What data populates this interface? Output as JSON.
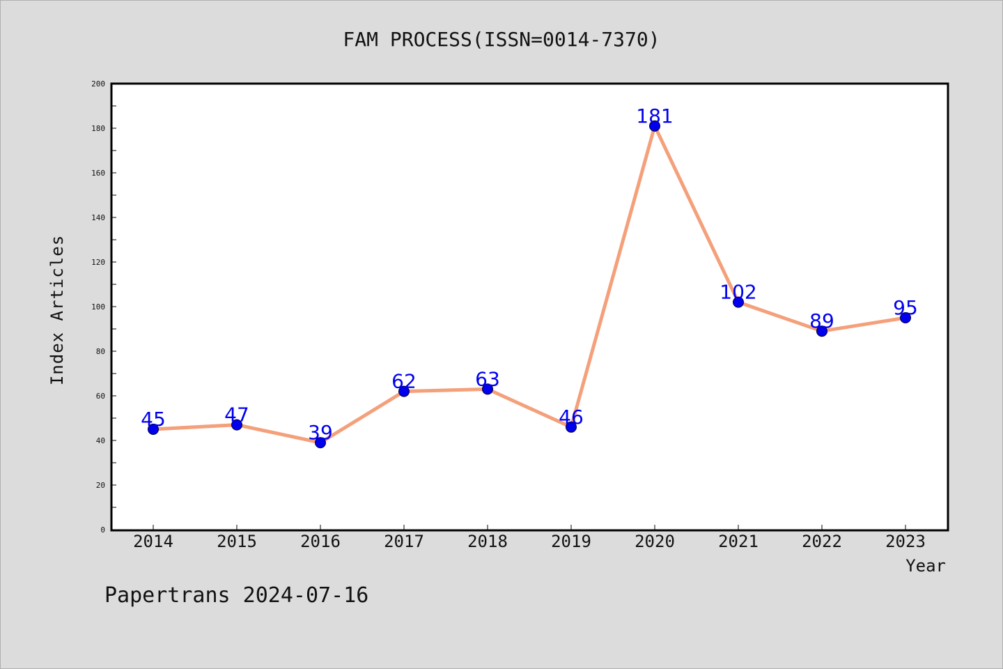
{
  "chart_data": {
    "type": "line",
    "title": "FAM PROCESS(ISSN=0014-7370)",
    "xlabel": "Year",
    "ylabel": "Index Articles",
    "categories": [
      "2014",
      "2015",
      "2016",
      "2017",
      "2018",
      "2019",
      "2020",
      "2021",
      "2022",
      "2023"
    ],
    "values": [
      45,
      47,
      39,
      62,
      63,
      46,
      181,
      102,
      89,
      95
    ],
    "ylim": [
      0,
      200
    ],
    "yticks": [
      0,
      20,
      40,
      60,
      80,
      100,
      120,
      140,
      160,
      180,
      200
    ],
    "grid": false,
    "line_color": "#f4a07a",
    "marker_color": "#0000ee",
    "label_color": "#0000ee"
  },
  "footer": "Papertrans 2024-07-16"
}
